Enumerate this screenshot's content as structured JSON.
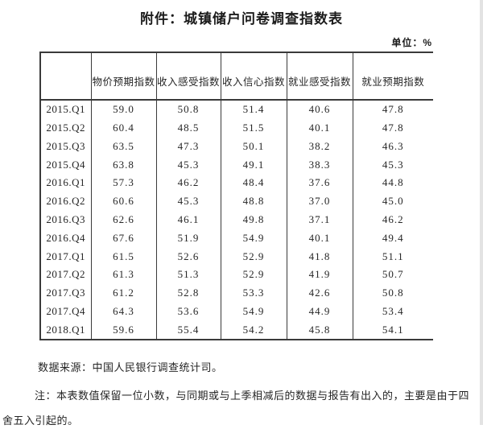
{
  "page": {
    "title": "附件：城镇储户问卷调查指数表",
    "unit_label": "单位：%"
  },
  "table": {
    "corner": "",
    "columns": [
      "物价预期指数",
      "收入感受指数",
      "收入信心指数",
      "就业感受指数",
      "就业预期指数"
    ],
    "rows": [
      {
        "period": "2015.Q1",
        "values": [
          "59.0",
          "50.8",
          "51.4",
          "40.6",
          "47.8"
        ]
      },
      {
        "period": "2015.Q2",
        "values": [
          "60.4",
          "48.5",
          "51.5",
          "40.1",
          "47.8"
        ]
      },
      {
        "period": "2015.Q3",
        "values": [
          "63.5",
          "47.3",
          "50.1",
          "38.2",
          "46.3"
        ]
      },
      {
        "period": "2015.Q4",
        "values": [
          "63.8",
          "45.3",
          "49.1",
          "38.3",
          "45.3"
        ]
      },
      {
        "period": "2016.Q1",
        "values": [
          "57.3",
          "46.2",
          "48.4",
          "37.6",
          "44.8"
        ]
      },
      {
        "period": "2016.Q2",
        "values": [
          "60.6",
          "45.3",
          "48.8",
          "37.0",
          "45.0"
        ]
      },
      {
        "period": "2016.Q3",
        "values": [
          "62.6",
          "46.1",
          "49.8",
          "37.1",
          "46.2"
        ]
      },
      {
        "period": "2016.Q4",
        "values": [
          "67.6",
          "51.9",
          "54.9",
          "40.1",
          "49.4"
        ]
      },
      {
        "period": "2017.Q1",
        "values": [
          "61.5",
          "52.6",
          "52.9",
          "41.8",
          "51.1"
        ]
      },
      {
        "period": "2017.Q2",
        "values": [
          "61.3",
          "51.3",
          "52.9",
          "41.9",
          "50.7"
        ]
      },
      {
        "period": "2017.Q3",
        "values": [
          "61.2",
          "52.8",
          "53.3",
          "42.6",
          "50.8"
        ]
      },
      {
        "period": "2017.Q4",
        "values": [
          "64.3",
          "53.6",
          "54.9",
          "44.9",
          "53.4"
        ]
      },
      {
        "period": "2018.Q1",
        "values": [
          "59.6",
          "55.4",
          "54.2",
          "45.8",
          "54.1"
        ]
      }
    ]
  },
  "footer": {
    "source": "数据来源：中国人民银行调查统计司。",
    "note": "注：本表数值保留一位小数，与同期或与上季相减后的数据与报告有出入的，主要是由于四舍五入引起的。"
  }
}
